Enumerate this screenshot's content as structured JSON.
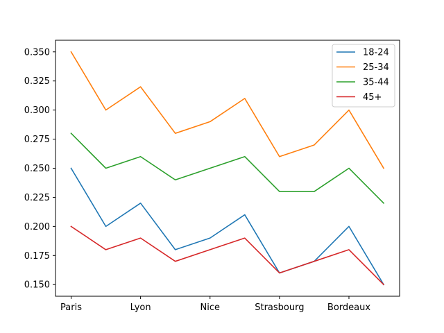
{
  "chart_data": {
    "type": "line",
    "title": "",
    "xlabel": "",
    "ylabel": "",
    "x_tick_labels": [
      "Paris",
      "Lyon",
      "Nice",
      "Strasbourg",
      "Bordeaux"
    ],
    "categories": [
      "Paris",
      "",
      "Lyon",
      "",
      "Nice",
      "",
      "Strasbourg",
      "",
      "Bordeaux",
      ""
    ],
    "ylim": [
      0.14,
      0.36
    ],
    "y_ticks": [
      "0.150",
      "0.175",
      "0.200",
      "0.225",
      "0.250",
      "0.275",
      "0.300",
      "0.325",
      "0.350"
    ],
    "grid": false,
    "legend_position": "top-right",
    "series": [
      {
        "name": "18-24",
        "color": "#1f77b4",
        "values": [
          0.25,
          0.2,
          0.22,
          0.18,
          0.19,
          0.21,
          0.16,
          0.17,
          0.2,
          0.15
        ]
      },
      {
        "name": "25-34",
        "color": "#ff7f0e",
        "values": [
          0.35,
          0.3,
          0.32,
          0.28,
          0.29,
          0.31,
          0.26,
          0.27,
          0.3,
          0.25
        ]
      },
      {
        "name": "35-44",
        "color": "#2ca02c",
        "values": [
          0.28,
          0.25,
          0.26,
          0.24,
          0.25,
          0.26,
          0.23,
          0.23,
          0.25,
          0.22
        ]
      },
      {
        "name": "45+",
        "color": "#d62728",
        "values": [
          0.2,
          0.18,
          0.19,
          0.17,
          0.18,
          0.19,
          0.16,
          0.17,
          0.18,
          0.15
        ]
      }
    ]
  }
}
